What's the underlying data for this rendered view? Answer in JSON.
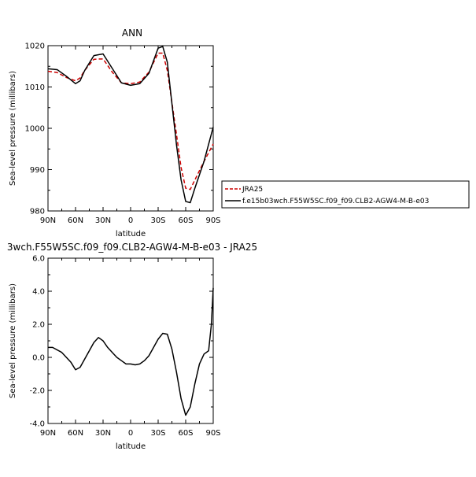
{
  "chart_data": [
    {
      "type": "line",
      "title": "ANN",
      "xlabel": "latitude",
      "ylabel": "Sea-level pressure (millibars)",
      "x_ticks": [
        "90N",
        "60N",
        "30N",
        "0",
        "30S",
        "60S",
        "90S"
      ],
      "y_ticks": [
        "980",
        "990",
        "1000",
        "1010",
        "1020"
      ],
      "xlim": [
        90,
        -90
      ],
      "ylim": [
        980,
        1020
      ],
      "legend_placement": "right",
      "series": [
        {
          "name": "JRA25",
          "color": "#cc0000",
          "dash": "dashed",
          "x": [
            90,
            80,
            70,
            60,
            55,
            50,
            40,
            30,
            20,
            10,
            0,
            -10,
            -20,
            -30,
            -35,
            -40,
            -50,
            -55,
            -60,
            -65,
            -70,
            -80,
            -90
          ],
          "y": [
            1013.8,
            1013.5,
            1012.3,
            1011.5,
            1012.2,
            1014.0,
            1016.7,
            1016.8,
            1013.6,
            1011.0,
            1010.8,
            1011.2,
            1013.6,
            1018.2,
            1018.2,
            1014.0,
            998.5,
            990.5,
            985.5,
            985.2,
            987.5,
            992.0,
            996.2
          ]
        },
        {
          "name": "f.e15b03wch.F55W5SC.f09_f09.CLB2-AGW4-M-B-e03",
          "color": "#000000",
          "dash": "solid",
          "x": [
            90,
            80,
            70,
            60,
            55,
            50,
            40,
            30,
            20,
            10,
            0,
            -10,
            -20,
            -30,
            -35,
            -40,
            -50,
            -55,
            -60,
            -65,
            -70,
            -80,
            -90
          ],
          "y": [
            1014.4,
            1014.2,
            1012.6,
            1010.8,
            1011.5,
            1014.0,
            1017.6,
            1018.0,
            1014.5,
            1011.0,
            1010.4,
            1010.8,
            1013.3,
            1019.4,
            1019.8,
            1016.0,
            996.0,
            987.5,
            982.3,
            982.0,
            985.5,
            992.0,
            1000.3
          ]
        }
      ]
    },
    {
      "type": "line",
      "title": "3wch.F55W5SC.f09_f09.CLB2-AGW4-M-B-e03 - JRA25",
      "xlabel": "latitude",
      "ylabel": "Sea-level pressure (millibars)",
      "x_ticks": [
        "90N",
        "60N",
        "30N",
        "0",
        "30S",
        "60S",
        "90S"
      ],
      "y_ticks": [
        "-4.0",
        "-2.0",
        "0.0",
        "2.0",
        "4.0",
        "6.0"
      ],
      "xlim": [
        90,
        -90
      ],
      "ylim": [
        -4,
        6
      ],
      "series": [
        {
          "color": "#000000",
          "dash": "solid",
          "x": [
            90,
            85,
            75,
            70,
            65,
            60,
            55,
            50,
            45,
            40,
            35,
            30,
            25,
            20,
            15,
            10,
            5,
            0,
            -5,
            -10,
            -15,
            -20,
            -25,
            -30,
            -35,
            -40,
            -45,
            -50,
            -55,
            -60,
            -65,
            -70,
            -75,
            -80,
            -85,
            -88,
            -90
          ],
          "y": [
            0.6,
            0.6,
            0.3,
            0.0,
            -0.3,
            -0.75,
            -0.6,
            -0.1,
            0.4,
            0.9,
            1.2,
            1.0,
            0.6,
            0.3,
            0.0,
            -0.2,
            -0.4,
            -0.4,
            -0.45,
            -0.4,
            -0.2,
            0.1,
            0.6,
            1.1,
            1.45,
            1.4,
            0.5,
            -0.9,
            -2.5,
            -3.5,
            -3.0,
            -1.6,
            -0.4,
            0.2,
            0.4,
            2.0,
            4.2
          ]
        }
      ]
    }
  ]
}
